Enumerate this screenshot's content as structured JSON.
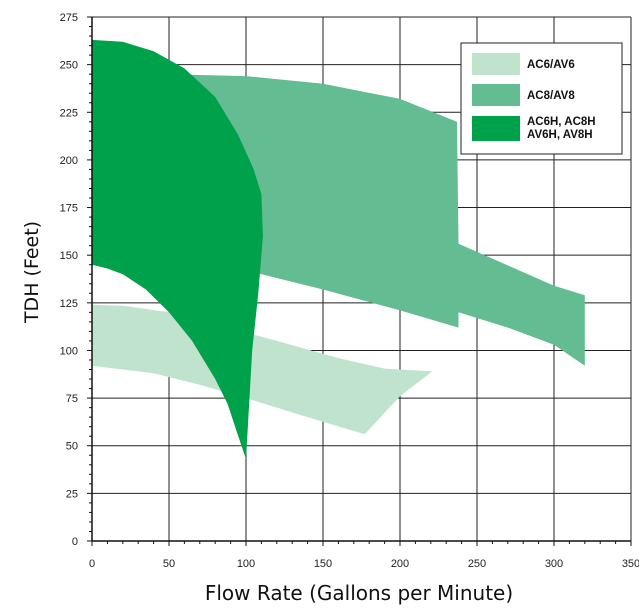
{
  "chart_data": {
    "type": "area",
    "xlabel": "Flow Rate (Gallons per Minute)",
    "ylabel": "TDH (Feet)",
    "xlim": [
      0,
      350
    ],
    "ylim": [
      0,
      275
    ],
    "x_ticks": [
      "0",
      "50",
      "100",
      "150",
      "200",
      "250",
      "300",
      "350"
    ],
    "y_ticks": [
      "0",
      "25",
      "50",
      "75",
      "100",
      "125",
      "150",
      "175",
      "200",
      "225",
      "250",
      "275"
    ],
    "grid": true,
    "legend_position": "top-right",
    "series": [
      {
        "name": "AC6/AV6",
        "color": "#bfe3cd",
        "polygon": [
          [
            0,
            124
          ],
          [
            20,
            123.5
          ],
          [
            50,
            120
          ],
          [
            80,
            114
          ],
          [
            120,
            105
          ],
          [
            160,
            96
          ],
          [
            190,
            90.5
          ],
          [
            221,
            89
          ],
          [
            200,
            76
          ],
          [
            177,
            56
          ],
          [
            140,
            65
          ],
          [
            100,
            75
          ],
          [
            70,
            82
          ],
          [
            40,
            88
          ],
          [
            0,
            92
          ]
        ]
      },
      {
        "name": "AC8/AV8",
        "color": "#63bc92",
        "polygon": [
          [
            0,
            246
          ],
          [
            50,
            245
          ],
          [
            100,
            244
          ],
          [
            150,
            240
          ],
          [
            200,
            232
          ],
          [
            237,
            220
          ],
          [
            238,
            156
          ],
          [
            300,
            134
          ],
          [
            320,
            129
          ],
          [
            320,
            92
          ],
          [
            300,
            103
          ],
          [
            270,
            112
          ],
          [
            238,
            120
          ],
          [
            238,
            112
          ],
          [
            200,
            121
          ],
          [
            150,
            132
          ],
          [
            100,
            142
          ],
          [
            50,
            146
          ],
          [
            0,
            145
          ]
        ]
      },
      {
        "name": "AC6H, AC8H\nAV6H, AV8H",
        "color": "#00a14b",
        "polygon": [
          [
            0,
            263
          ],
          [
            20,
            262
          ],
          [
            40,
            257
          ],
          [
            60,
            248
          ],
          [
            80,
            233
          ],
          [
            95,
            213
          ],
          [
            105,
            195
          ],
          [
            110,
            182
          ],
          [
            111,
            160
          ],
          [
            108,
            130
          ],
          [
            104,
            100
          ],
          [
            100,
            43
          ],
          [
            95,
            55
          ],
          [
            88,
            72
          ],
          [
            80,
            85
          ],
          [
            65,
            105
          ],
          [
            50,
            120
          ],
          [
            35,
            132
          ],
          [
            20,
            140
          ],
          [
            10,
            143
          ],
          [
            0,
            145
          ]
        ]
      }
    ]
  }
}
